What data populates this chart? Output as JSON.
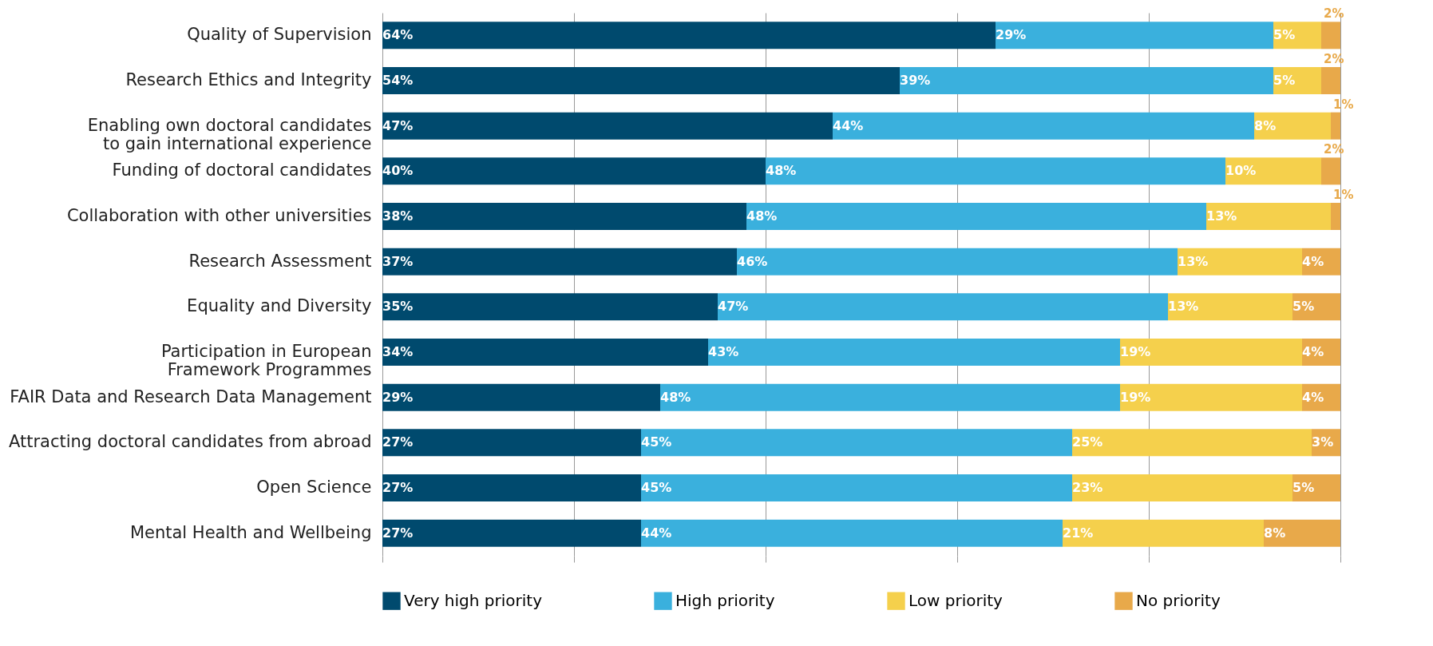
{
  "chart_data": {
    "type": "bar",
    "orientation": "horizontal",
    "stacked": true,
    "categories": [
      "Quality of Supervision",
      "Research Ethics and Integrity",
      "Enabling own doctoral candidates to gain international experience",
      "Funding of doctoral candidates",
      "Collaboration with other universities",
      "Research Assessment",
      "Equality and Diversity",
      "Participation in European Framework Programmes",
      "FAIR Data and Research Data Management",
      "Attracting doctoral candidates from abroad",
      "Open Science",
      "Mental Health and Wellbeing"
    ],
    "series": [
      {
        "name": "Very high priority",
        "color": "#004a6e",
        "values": [
          64,
          54,
          47,
          40,
          38,
          37,
          35,
          34,
          29,
          27,
          27,
          27
        ],
        "value_labels": [
          "64%",
          "54%",
          "47%",
          "40%",
          "38%",
          "37%",
          "35%",
          "34%",
          "29%",
          "27%",
          "27%",
          "27%"
        ]
      },
      {
        "name": "High priority",
        "color": "#3ab0dd",
        "values": [
          29,
          39,
          44,
          48,
          48,
          46,
          47,
          43,
          48,
          45,
          45,
          44
        ],
        "value_labels": [
          "29%",
          "39%",
          "44%",
          "48%",
          "48%",
          "46%",
          "47%",
          "43%",
          "48%",
          "45%",
          "45%",
          "44%"
        ]
      },
      {
        "name": "Low priority",
        "color": "#f5d04c",
        "values": [
          5,
          5,
          8,
          10,
          13,
          13,
          13,
          19,
          19,
          25,
          23,
          21
        ],
        "value_labels": [
          "5%",
          "5%",
          "8%",
          "10%",
          "13%",
          "13%",
          "13%",
          "19%",
          "19%",
          "25%",
          "23%",
          "21%"
        ]
      },
      {
        "name": "No priority",
        "color": "#e8a94a",
        "values": [
          2,
          2,
          1,
          2,
          1,
          4,
          5,
          4,
          4,
          3,
          5,
          8
        ],
        "value_labels": [
          "2%",
          "2%",
          "1%",
          "2%",
          "1%",
          "4%",
          "5%",
          "4%",
          "4%",
          "3%",
          "5%",
          "8%"
        ]
      }
    ],
    "xlim": [
      0,
      100
    ],
    "xticks": [
      {
        "value": 0,
        "label": null
      },
      {
        "value": 20,
        "label": null
      },
      {
        "value": 40,
        "label": null
      },
      {
        "value": 60,
        "label": null
      },
      {
        "value": 80,
        "label": null
      },
      {
        "value": 100,
        "label": null
      }
    ],
    "grid": "x",
    "legend": "bottom"
  }
}
